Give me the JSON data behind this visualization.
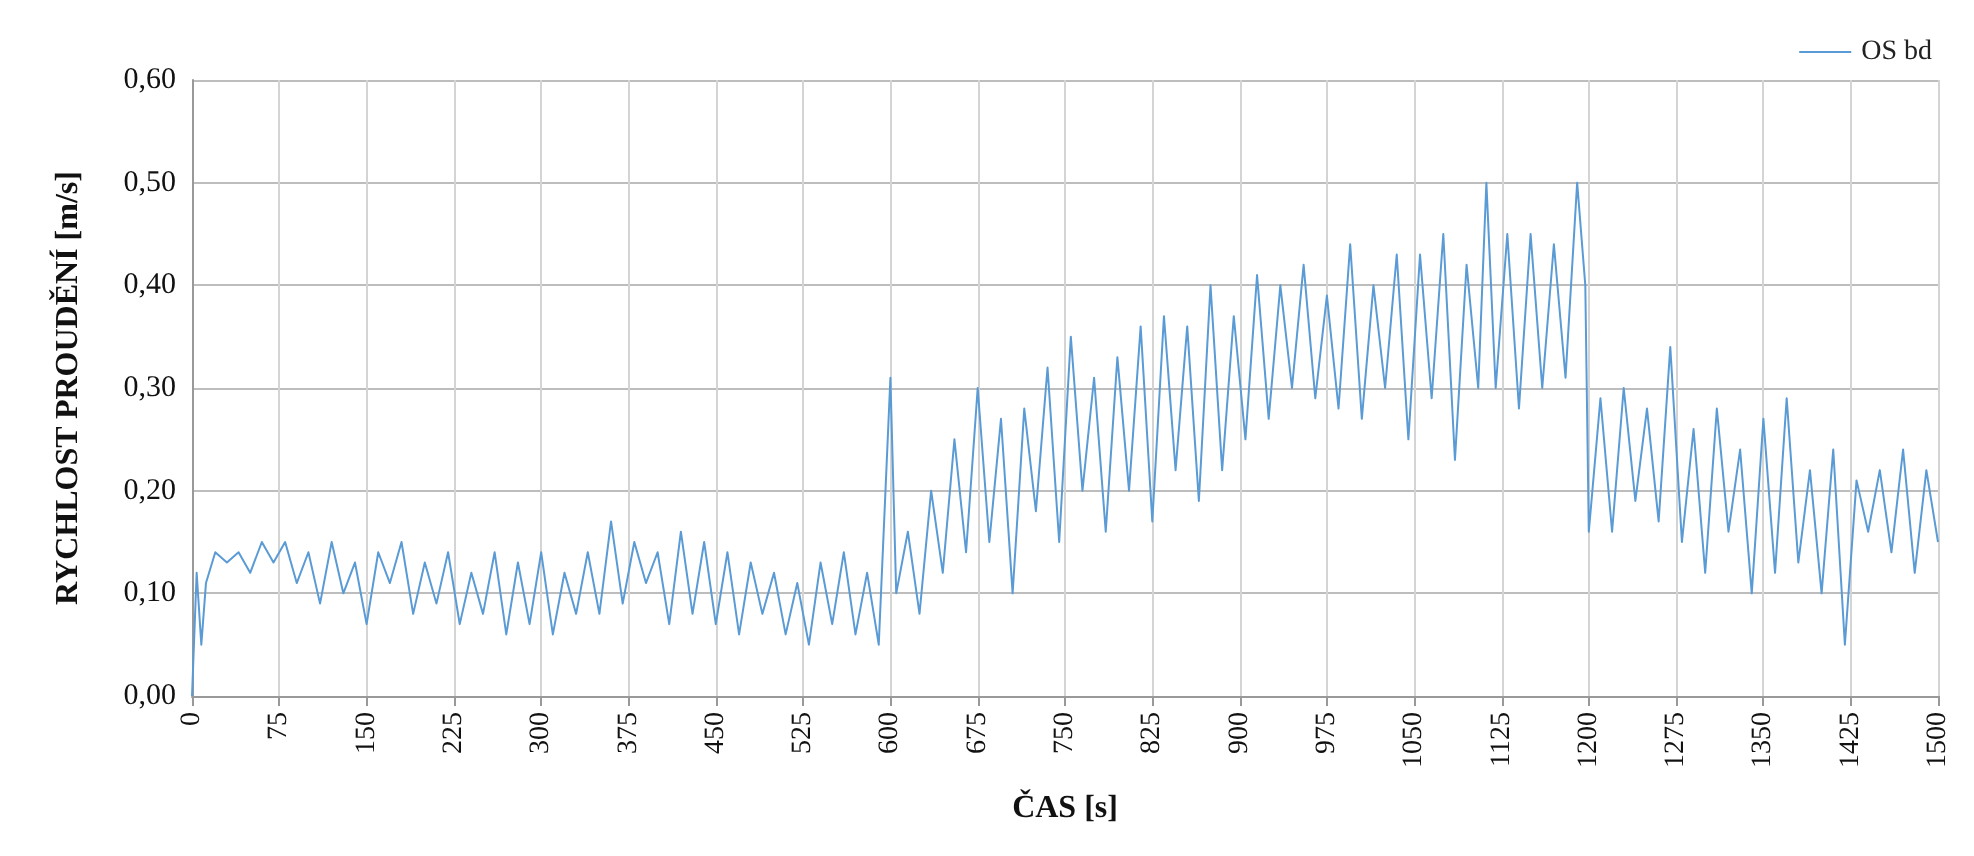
{
  "chart_data": {
    "type": "line",
    "xlabel": "ČAS [s]",
    "ylabel": "RYCHLOST PROUDĚNÍ [m/s]",
    "legend": "top right",
    "grid": true,
    "marker": "none",
    "line_style": "solid",
    "xlim": [
      0,
      1500
    ],
    "xticks": [
      0,
      75,
      150,
      225,
      300,
      375,
      450,
      525,
      600,
      675,
      750,
      825,
      900,
      975,
      1050,
      1125,
      1200,
      1275,
      1350,
      1425,
      1500
    ],
    "ylim": [
      0,
      0.6
    ],
    "yticks": [
      {
        "value": 0,
        "label": "0,00"
      },
      {
        "value": 0.1,
        "label": "0,10"
      },
      {
        "value": 0.2,
        "label": "0,20"
      },
      {
        "value": 0.3,
        "label": "0,30"
      },
      {
        "value": 0.4,
        "label": "0,40"
      },
      {
        "value": 0.5,
        "label": "0,50"
      },
      {
        "value": 0.6,
        "label": "0,60"
      }
    ],
    "x": [
      0,
      4,
      8,
      12,
      20,
      30,
      40,
      50,
      60,
      70,
      80,
      90,
      100,
      110,
      120,
      130,
      140,
      150,
      160,
      170,
      180,
      190,
      200,
      210,
      220,
      230,
      240,
      250,
      260,
      270,
      280,
      290,
      300,
      310,
      320,
      330,
      340,
      350,
      360,
      370,
      380,
      390,
      400,
      410,
      420,
      430,
      440,
      450,
      460,
      470,
      480,
      490,
      500,
      510,
      520,
      530,
      540,
      550,
      560,
      570,
      580,
      590,
      600,
      605,
      615,
      625,
      635,
      645,
      655,
      665,
      675,
      685,
      695,
      705,
      715,
      725,
      735,
      745,
      755,
      765,
      775,
      785,
      795,
      805,
      815,
      825,
      835,
      845,
      855,
      865,
      875,
      885,
      895,
      905,
      915,
      925,
      935,
      945,
      955,
      965,
      975,
      985,
      995,
      1005,
      1015,
      1025,
      1035,
      1045,
      1055,
      1065,
      1075,
      1085,
      1095,
      1105,
      1112,
      1120,
      1130,
      1140,
      1150,
      1160,
      1170,
      1180,
      1190,
      1197,
      1200,
      1210,
      1220,
      1230,
      1240,
      1250,
      1260,
      1270,
      1280,
      1290,
      1300,
      1310,
      1320,
      1330,
      1340,
      1350,
      1360,
      1370,
      1380,
      1390,
      1400,
      1410,
      1420,
      1430,
      1440,
      1450,
      1460,
      1470,
      1480,
      1490,
      1500
    ],
    "series": [
      {
        "name": "OS bd",
        "color": "#5b9bd5",
        "values": [
          0.0,
          0.12,
          0.05,
          0.11,
          0.14,
          0.13,
          0.14,
          0.12,
          0.15,
          0.13,
          0.15,
          0.11,
          0.14,
          0.09,
          0.15,
          0.1,
          0.13,
          0.07,
          0.14,
          0.11,
          0.15,
          0.08,
          0.13,
          0.09,
          0.14,
          0.07,
          0.12,
          0.08,
          0.14,
          0.06,
          0.13,
          0.07,
          0.14,
          0.06,
          0.12,
          0.08,
          0.14,
          0.08,
          0.17,
          0.09,
          0.15,
          0.11,
          0.14,
          0.07,
          0.16,
          0.08,
          0.15,
          0.07,
          0.14,
          0.06,
          0.13,
          0.08,
          0.12,
          0.06,
          0.11,
          0.05,
          0.13,
          0.07,
          0.14,
          0.06,
          0.12,
          0.05,
          0.31,
          0.1,
          0.16,
          0.08,
          0.2,
          0.12,
          0.25,
          0.14,
          0.3,
          0.15,
          0.27,
          0.1,
          0.28,
          0.18,
          0.32,
          0.15,
          0.35,
          0.2,
          0.31,
          0.16,
          0.33,
          0.2,
          0.36,
          0.17,
          0.37,
          0.22,
          0.36,
          0.19,
          0.4,
          0.22,
          0.37,
          0.25,
          0.41,
          0.27,
          0.4,
          0.3,
          0.42,
          0.29,
          0.39,
          0.28,
          0.44,
          0.27,
          0.4,
          0.3,
          0.43,
          0.25,
          0.43,
          0.29,
          0.45,
          0.23,
          0.42,
          0.3,
          0.5,
          0.3,
          0.45,
          0.28,
          0.45,
          0.3,
          0.44,
          0.31,
          0.5,
          0.4,
          0.16,
          0.29,
          0.16,
          0.3,
          0.19,
          0.28,
          0.17,
          0.34,
          0.15,
          0.26,
          0.12,
          0.28,
          0.16,
          0.24,
          0.1,
          0.27,
          0.12,
          0.29,
          0.13,
          0.22,
          0.1,
          0.24,
          0.05,
          0.21,
          0.16,
          0.22,
          0.14,
          0.24,
          0.12,
          0.22,
          0.15
        ]
      }
    ]
  }
}
